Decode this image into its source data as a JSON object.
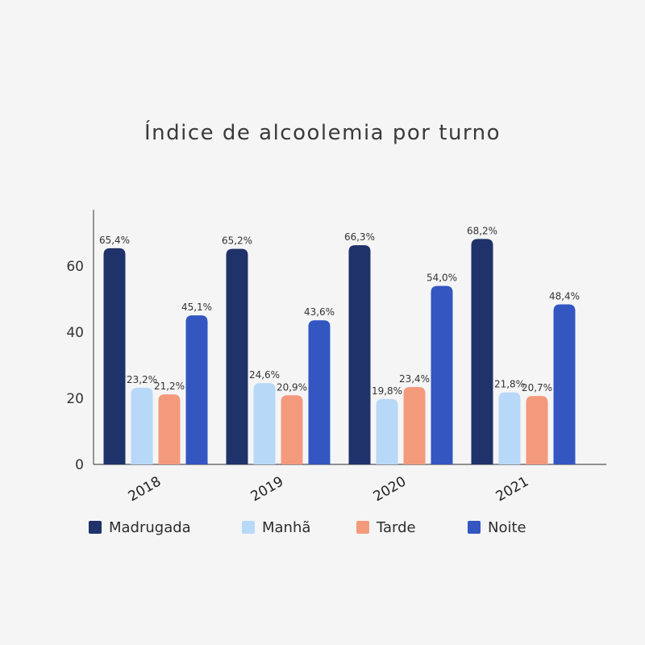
{
  "chart_data": {
    "type": "bar",
    "title": "Índice de alcoolemia por turno",
    "categories": [
      "2018",
      "2019",
      "2020",
      "2021"
    ],
    "series": [
      {
        "name": "Madrugada",
        "color": "#1f3269",
        "values": [
          65.4,
          65.2,
          66.3,
          68.2
        ],
        "labels": [
          "65,4%",
          "65,2%",
          "66,3%",
          "68,2%"
        ]
      },
      {
        "name": "Manhã",
        "color": "#b8d8f7",
        "values": [
          23.2,
          24.6,
          19.8,
          21.8
        ],
        "labels": [
          "23,2%",
          "24,6%",
          "19,8%",
          "21,8%"
        ]
      },
      {
        "name": "Tarde",
        "color": "#f49a7c",
        "values": [
          21.2,
          20.9,
          23.4,
          20.7
        ],
        "labels": [
          "21,2%",
          "20,9%",
          "23,4%",
          "20,7%"
        ]
      },
      {
        "name": "Noite",
        "color": "#3356c1",
        "values": [
          45.1,
          43.6,
          54.0,
          48.4
        ],
        "labels": [
          "45,1%",
          "43,6%",
          "54,0%",
          "48,4%"
        ]
      }
    ],
    "yticks": [
      0,
      20,
      40,
      60
    ],
    "ylim": [
      0,
      77
    ],
    "legend_position": "bottom",
    "grid": false
  }
}
